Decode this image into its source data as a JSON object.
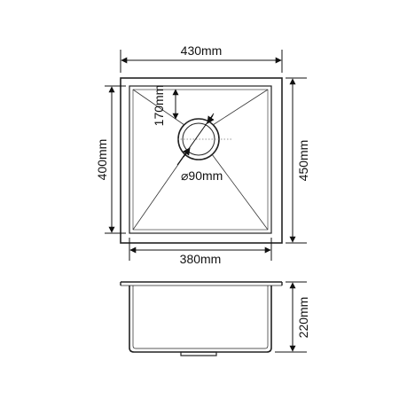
{
  "dimensions": {
    "outer_width": "430mm",
    "outer_depth": "450mm",
    "inner_width": "380mm",
    "inner_depth": "400mm",
    "drain_offset": "170mm",
    "drain_diameter": "⌀90mm",
    "bowl_height": "220mm"
  },
  "colors": {
    "line": "#222222",
    "background": "#ffffff"
  }
}
